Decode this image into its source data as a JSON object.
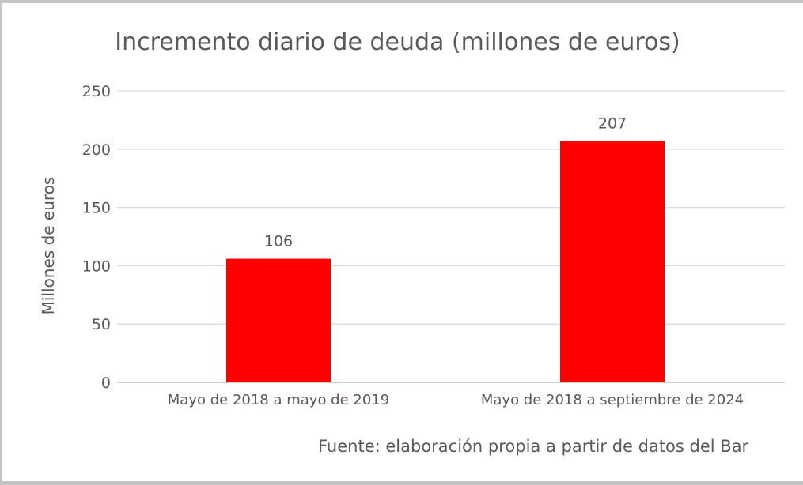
{
  "chart_data": {
    "type": "bar",
    "title": "Incremento diario de deuda (millones de euros)",
    "ylabel": "Millones de euros",
    "xlabel": "",
    "categories": [
      "Mayo de 2018 a mayo de 2019",
      "Mayo de 2018 a septiembre de 2024"
    ],
    "values": [
      106,
      207
    ],
    "data_labels": [
      "106",
      "207"
    ],
    "ylim": [
      0,
      250
    ],
    "yticks": [
      0,
      50,
      100,
      150,
      200,
      250
    ],
    "grid": true,
    "bar_color": "#ff0000",
    "source": "Fuente: elaboración propia a partir de datos del Bar"
  }
}
